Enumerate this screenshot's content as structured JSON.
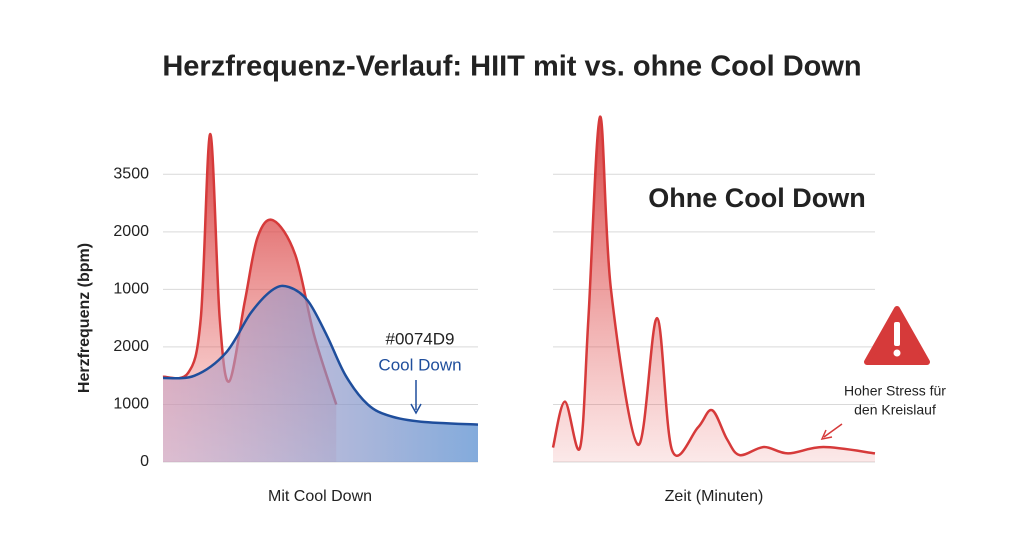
{
  "title": "Herzfrequenz-Verlauf: HIIT mit vs. ohne Cool Down",
  "chart_data": [
    {
      "type": "area",
      "xlabel": "Mit Cool Down",
      "ylabel": "Herzfrequenz (bpm)",
      "xlim": [
        0,
        100
      ],
      "ylim": [
        0,
        6.5
      ],
      "yticks": [
        {
          "value": 0,
          "label": "0"
        },
        {
          "value": 1,
          "label": "1000"
        },
        {
          "value": 2,
          "label": "2000"
        },
        {
          "value": 3,
          "label": "1000"
        },
        {
          "value": 4,
          "label": "2000"
        },
        {
          "value": 5,
          "label": "3500"
        }
      ],
      "grid": true,
      "series": [
        {
          "color": "#d63a3a",
          "x": [
            0,
            8,
            12,
            15,
            18,
            21,
            26,
            30,
            35,
            42,
            48,
            55
          ],
          "values": [
            1.48,
            1.55,
            2.5,
            5.7,
            2.5,
            1.4,
            2.8,
            3.9,
            4.2,
            3.6,
            2.2,
            1.0
          ]
        },
        {
          "name": "Cool Down",
          "color": "#1f4e9c",
          "x": [
            0,
            10,
            20,
            28,
            35,
            40,
            46,
            52,
            58,
            65,
            72,
            82,
            100
          ],
          "values": [
            1.46,
            1.5,
            1.9,
            2.6,
            3.0,
            3.04,
            2.8,
            2.2,
            1.5,
            1.0,
            0.8,
            0.7,
            0.65
          ]
        }
      ],
      "annotation": "#0074D9"
    },
    {
      "type": "area",
      "xlabel": "Zeit (Minuten)",
      "xlim": [
        0,
        100
      ],
      "ylim": [
        0,
        6.5
      ],
      "sharey": true,
      "grid": true,
      "series": [
        {
          "color": "#d63a3a",
          "x": [
            0,
            3.7,
            8.4,
            11,
            14.6,
            18,
            26.4,
            32.3,
            37,
            45,
            49.4,
            54,
            58,
            65.5,
            73,
            84,
            100
          ],
          "values": [
            0.25,
            1.05,
            0.25,
            2.5,
            6.0,
            3.0,
            0.3,
            2.5,
            0.2,
            0.6,
            0.9,
            0.4,
            0.12,
            0.26,
            0.15,
            0.26,
            0.15
          ]
        }
      ],
      "annotation": "Ohne Cool Down",
      "warning": [
        "Hoher Stress für",
        "den Kreislauf"
      ]
    }
  ]
}
